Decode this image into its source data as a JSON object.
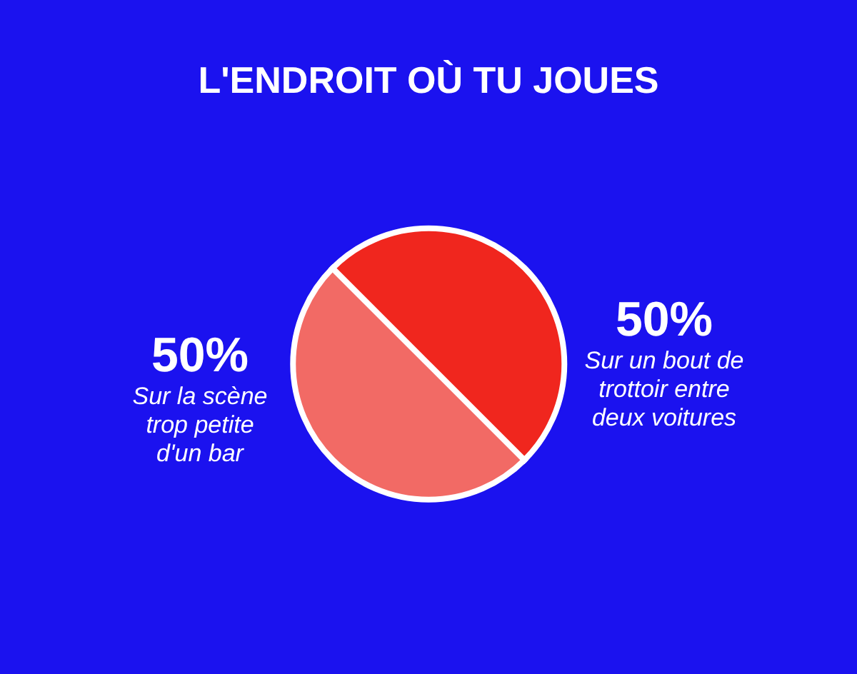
{
  "chart_data": {
    "type": "pie",
    "title": "L'ENDROIT OÙ TU JOUES",
    "categories": [
      "Sur la scène trop petite d'un bar",
      "Sur un bout de trottoir entre deux voitures"
    ],
    "values": [
      50,
      50
    ],
    "colors": [
      "#f26a65",
      "#f0261e"
    ],
    "value_labels": [
      "50%",
      "50%"
    ],
    "legend": false
  }
}
